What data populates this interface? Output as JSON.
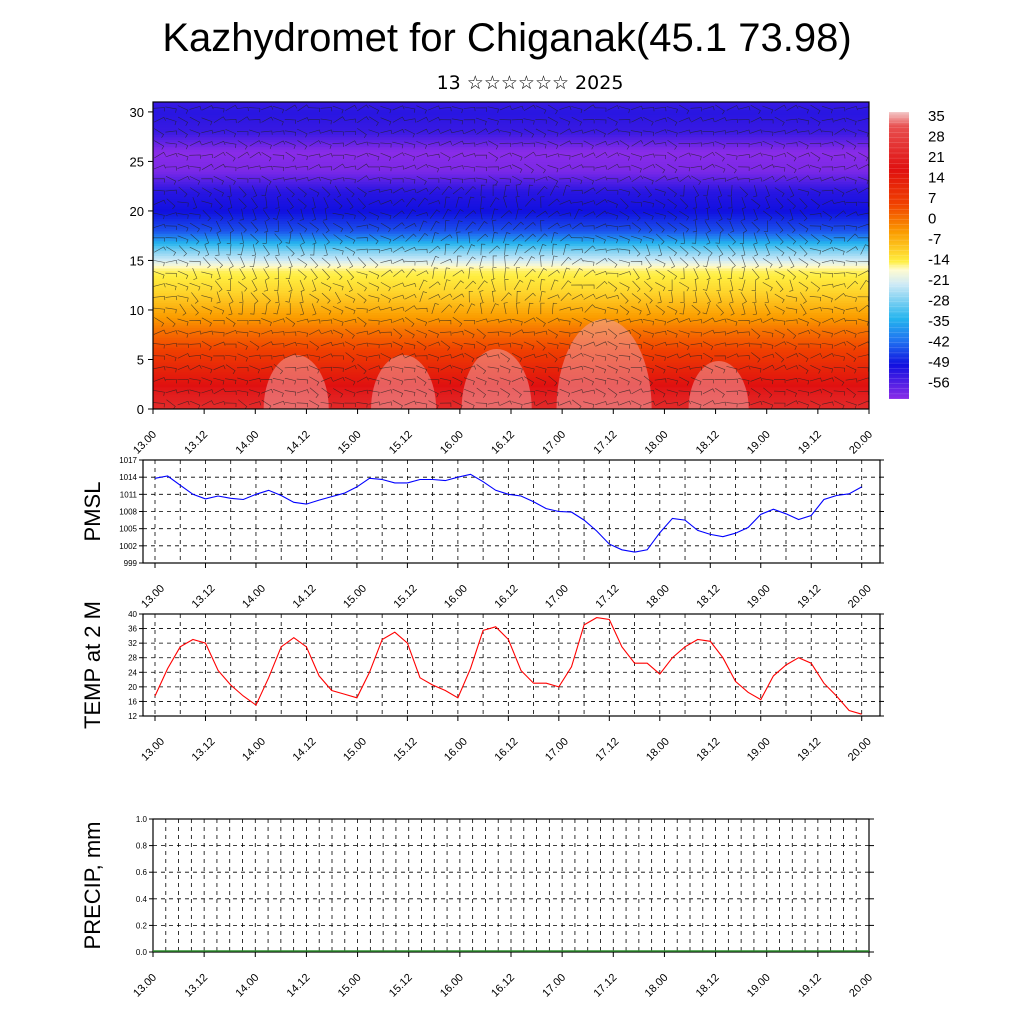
{
  "title": "Kazhydromet for Chiganak(45.1 73.98)",
  "subtitle": "13 ☆☆☆☆☆☆ 2025",
  "x_tick_labels": [
    "13.00",
    "13.12",
    "14.00",
    "14.12",
    "15.00",
    "15.12",
    "16.00",
    "16.12",
    "17.00",
    "17.12",
    "18.00",
    "18.12",
    "19.00",
    "19.12",
    "20.00"
  ],
  "colors": {
    "pmsl_line": "#0000ff",
    "temp_line": "#ff0000"
  },
  "chart_data": [
    {
      "name": "upper-air-cross-section",
      "type": "heatmap",
      "title": "",
      "ylabel": "",
      "y_ticks": [
        0,
        5,
        10,
        15,
        20,
        25,
        30
      ],
      "ylim": [
        0,
        31
      ],
      "colorbar_labels": [
        "35",
        "28",
        "21",
        "14",
        "7",
        "0",
        "-7",
        "-14",
        "-21",
        "-28",
        "-35",
        "-42",
        "-49",
        "-56"
      ],
      "colorbar_range": [
        -60,
        38
      ],
      "z_levels": [
        0,
        2,
        4,
        6,
        8,
        10,
        12,
        14,
        16,
        18,
        20,
        22,
        24,
        26,
        28,
        30,
        31
      ],
      "z_values": [
        28,
        25,
        20,
        14,
        9,
        3,
        -3,
        -7,
        -20,
        -38,
        -45,
        -48,
        -58,
        -60,
        -50,
        -48,
        -50
      ],
      "wind_barbs": true
    },
    {
      "name": "pmsl",
      "type": "line",
      "ylabel": "PMSL",
      "y_ticks": [
        999,
        1002,
        1005,
        1008,
        1011,
        1014,
        1017
      ],
      "ylim": [
        999,
        1017
      ],
      "x_hours": [
        0,
        3,
        6,
        9,
        12,
        15,
        18,
        21,
        24,
        27,
        30,
        33,
        36,
        39,
        42,
        45,
        48,
        51,
        54,
        57,
        60,
        63,
        66,
        69,
        72,
        75,
        78,
        81,
        84,
        87,
        90,
        93,
        96,
        99,
        102,
        105,
        108,
        111,
        114,
        117,
        120,
        123,
        126,
        129,
        132,
        135,
        138,
        141,
        144,
        147,
        150,
        153,
        156,
        159,
        162,
        165,
        168
      ],
      "values": [
        1013.8,
        1014.2,
        1012.6,
        1011.0,
        1010.2,
        1010.7,
        1010.3,
        1010.1,
        1011.0,
        1011.7,
        1010.8,
        1009.6,
        1009.3,
        1010.0,
        1010.6,
        1011.2,
        1012.3,
        1013.8,
        1013.6,
        1013.0,
        1013.0,
        1013.6,
        1013.6,
        1013.4,
        1014.0,
        1014.5,
        1013.2,
        1011.7,
        1011.0,
        1010.7,
        1009.7,
        1008.5,
        1008.0,
        1007.9,
        1006.5,
        1004.6,
        1002.3,
        1001.3,
        1000.9,
        1001.3,
        1004.3,
        1006.8,
        1006.5,
        1004.7,
        1004.0,
        1003.6,
        1004.2,
        1005.2,
        1007.5,
        1008.4,
        1007.6,
        1006.6,
        1007.3,
        1010.1,
        1010.8,
        1011.1,
        1012.3
      ]
    },
    {
      "name": "temp-2m",
      "type": "line",
      "ylabel": "TEMP at 2 M",
      "y_ticks": [
        12,
        16,
        20,
        24,
        28,
        32,
        36,
        40
      ],
      "ylim": [
        12,
        40
      ],
      "x_hours": [
        0,
        3,
        6,
        9,
        12,
        15,
        18,
        21,
        24,
        27,
        30,
        33,
        36,
        39,
        42,
        45,
        48,
        51,
        54,
        57,
        60,
        63,
        66,
        69,
        72,
        75,
        78,
        81,
        84,
        87,
        90,
        93,
        96,
        99,
        102,
        105,
        108,
        111,
        114,
        117,
        120,
        123,
        126,
        129,
        132,
        135,
        138,
        141,
        144,
        147,
        150,
        153,
        156,
        159,
        162,
        165,
        168
      ],
      "values": [
        17.5,
        25.0,
        31.0,
        33.0,
        32.0,
        24.5,
        20.5,
        17.5,
        15.0,
        22.5,
        31.0,
        33.5,
        31.0,
        23.0,
        19.0,
        18.0,
        17.0,
        24.0,
        33.0,
        35.0,
        32.0,
        22.5,
        20.5,
        19.0,
        17.0,
        25.0,
        35.5,
        36.5,
        33.0,
        24.5,
        21.0,
        21.0,
        20.0,
        25.5,
        37.0,
        39.0,
        38.5,
        31.0,
        26.5,
        26.5,
        23.5,
        28.0,
        31.0,
        33.0,
        32.5,
        28.0,
        21.5,
        18.5,
        16.5,
        23.0,
        26.0,
        28.0,
        26.5,
        21.0,
        17.5,
        13.5,
        12.5
      ]
    },
    {
      "name": "precip",
      "type": "bar",
      "ylabel": "PRECIP, mm",
      "y_tick_labels": [
        "0.0",
        "0.2",
        "0.4",
        "0.6",
        "0.8",
        "1.0"
      ],
      "ylim": [
        0,
        1
      ],
      "values": []
    }
  ]
}
